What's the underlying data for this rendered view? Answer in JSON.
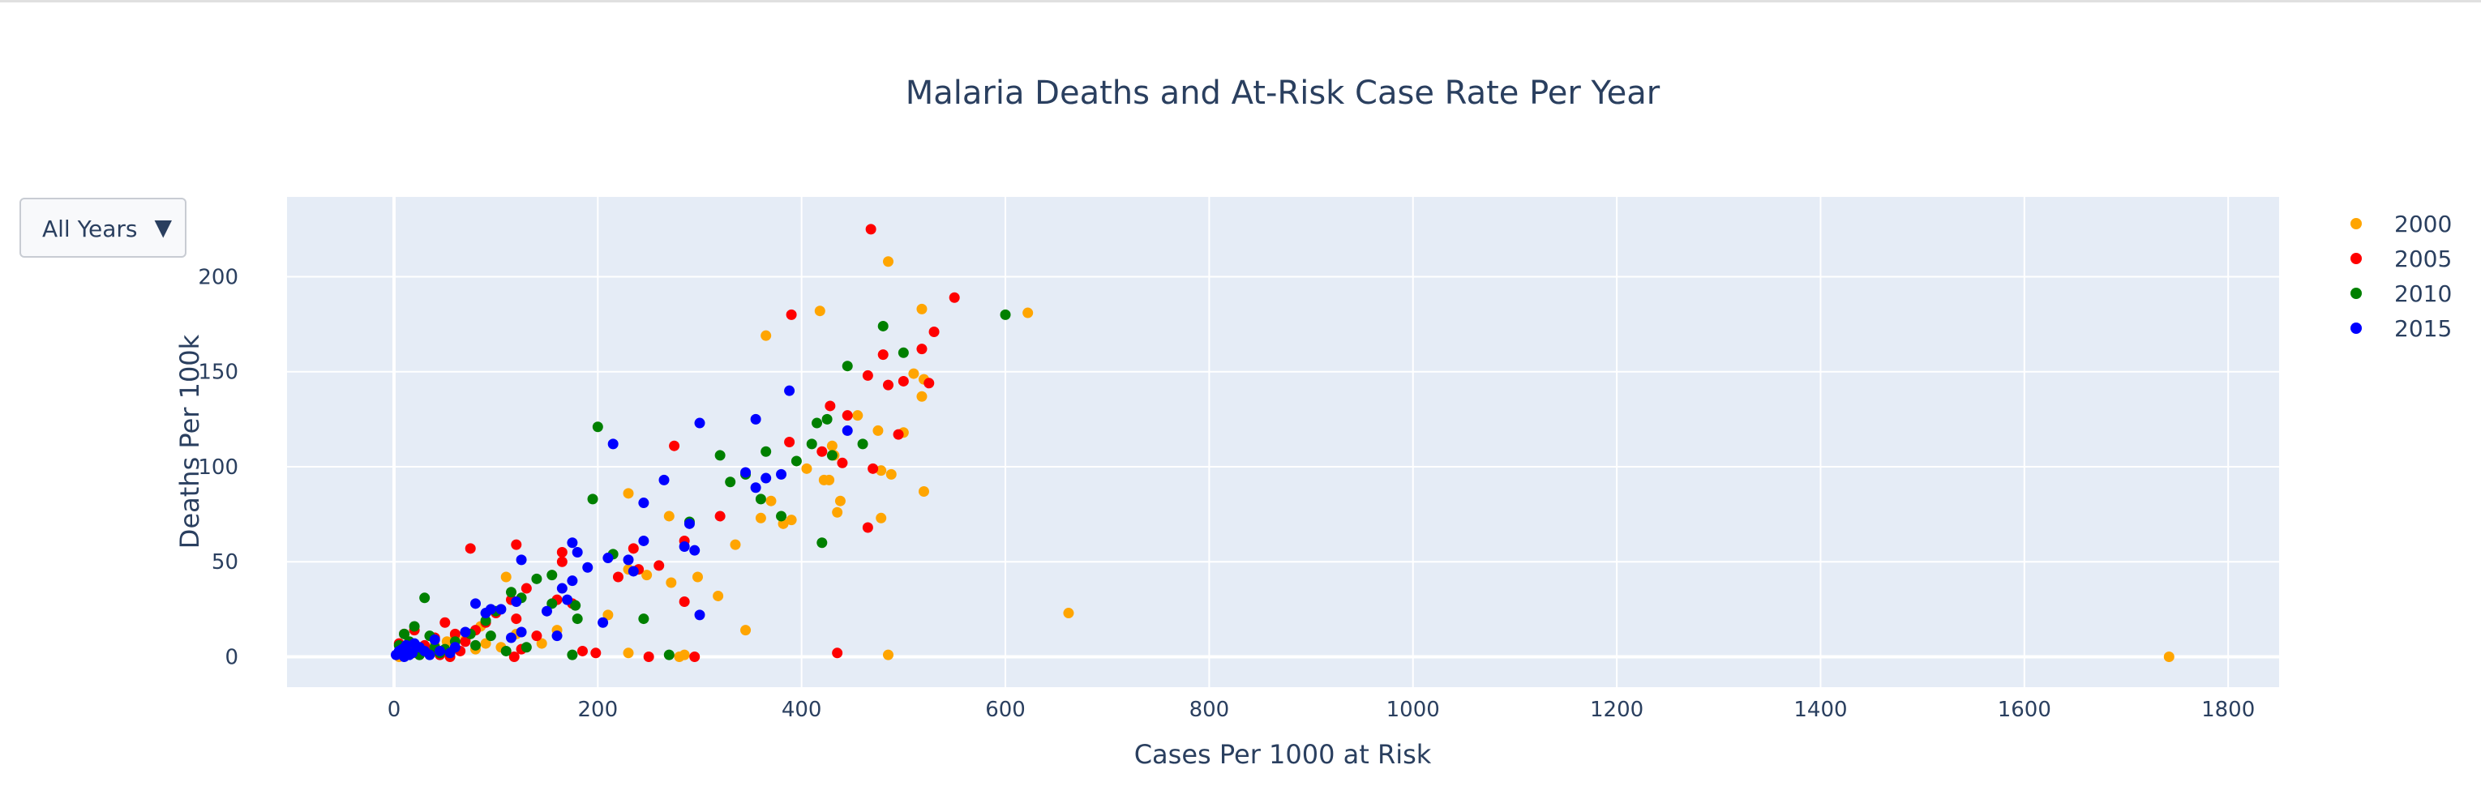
{
  "chart_data": {
    "type": "scatter",
    "title": "Malaria Deaths and At-Risk Case Rate Per Year",
    "xlabel": "Cases Per 1000 at Risk",
    "ylabel": "Deaths Per 100k",
    "xlim": [
      -105,
      1850
    ],
    "ylim": [
      -16,
      242
    ],
    "xticks": [
      0,
      200,
      400,
      600,
      800,
      1000,
      1200,
      1400,
      1600,
      1800
    ],
    "yticks": [
      0,
      50,
      100,
      150,
      200
    ],
    "grid": true,
    "legend_position": "top-right",
    "series": [
      {
        "name": "2000",
        "color": "#ffa500",
        "points": [
          [
            485,
            208
          ],
          [
            365,
            169
          ],
          [
            418,
            182
          ],
          [
            518,
            183
          ],
          [
            622,
            181
          ],
          [
            520,
            146
          ],
          [
            510,
            149
          ],
          [
            500,
            118
          ],
          [
            518,
            137
          ],
          [
            455,
            127
          ],
          [
            475,
            119
          ],
          [
            405,
            99
          ],
          [
            435,
            76
          ],
          [
            438,
            82
          ],
          [
            520,
            87
          ],
          [
            488,
            96
          ],
          [
            478,
            98
          ],
          [
            478,
            73
          ],
          [
            370,
            82
          ],
          [
            382,
            70
          ],
          [
            390,
            72
          ],
          [
            430,
            111
          ],
          [
            422,
            93
          ],
          [
            427,
            93
          ],
          [
            432,
            106
          ],
          [
            360,
            73
          ],
          [
            335,
            59
          ],
          [
            318,
            32
          ],
          [
            298,
            42
          ],
          [
            272,
            39
          ],
          [
            270,
            74
          ],
          [
            230,
            86
          ],
          [
            248,
            43
          ],
          [
            230,
            46
          ],
          [
            210,
            22
          ],
          [
            345,
            14
          ],
          [
            662,
            23
          ],
          [
            230,
            2
          ],
          [
            285,
            1
          ],
          [
            280,
            0
          ],
          [
            485,
            1
          ],
          [
            1742,
            0
          ],
          [
            110,
            42
          ],
          [
            105,
            5
          ],
          [
            85,
            16
          ],
          [
            80,
            4
          ],
          [
            120,
            12
          ],
          [
            145,
            7
          ],
          [
            160,
            14
          ],
          [
            60,
            11
          ],
          [
            52,
            8
          ],
          [
            40,
            6
          ],
          [
            30,
            4
          ],
          [
            20,
            2
          ],
          [
            10,
            1
          ],
          [
            5,
            0
          ],
          [
            3,
            1
          ],
          [
            12,
            2
          ],
          [
            8,
            3
          ],
          [
            15,
            5
          ],
          [
            25,
            1
          ],
          [
            35,
            3
          ],
          [
            45,
            2
          ],
          [
            70,
            9
          ],
          [
            90,
            7
          ]
        ]
      },
      {
        "name": "2005",
        "color": "#ff0000",
        "points": [
          [
            468,
            225
          ],
          [
            390,
            180
          ],
          [
            550,
            189
          ],
          [
            530,
            171
          ],
          [
            518,
            162
          ],
          [
            480,
            159
          ],
          [
            465,
            148
          ],
          [
            485,
            143
          ],
          [
            500,
            145
          ],
          [
            525,
            144
          ],
          [
            445,
            127
          ],
          [
            440,
            102
          ],
          [
            470,
            99
          ],
          [
            465,
            68
          ],
          [
            428,
            132
          ],
          [
            420,
            108
          ],
          [
            495,
            117
          ],
          [
            388,
            113
          ],
          [
            275,
            111
          ],
          [
            320,
            74
          ],
          [
            285,
            61
          ],
          [
            260,
            48
          ],
          [
            235,
            57
          ],
          [
            220,
            42
          ],
          [
            240,
            46
          ],
          [
            165,
            55
          ],
          [
            165,
            50
          ],
          [
            120,
            59
          ],
          [
            75,
            57
          ],
          [
            130,
            36
          ],
          [
            115,
            30
          ],
          [
            100,
            23
          ],
          [
            120,
            20
          ],
          [
            90,
            18
          ],
          [
            60,
            12
          ],
          [
            70,
            8
          ],
          [
            50,
            18
          ],
          [
            40,
            10
          ],
          [
            30,
            6
          ],
          [
            20,
            14
          ],
          [
            10,
            12
          ],
          [
            5,
            7
          ],
          [
            15,
            4
          ],
          [
            25,
            3
          ],
          [
            35,
            2
          ],
          [
            45,
            1
          ],
          [
            55,
            0
          ],
          [
            118,
            0
          ],
          [
            125,
            4
          ],
          [
            185,
            3
          ],
          [
            198,
            2
          ],
          [
            250,
            0
          ],
          [
            295,
            0
          ],
          [
            435,
            2
          ],
          [
            285,
            29
          ],
          [
            175,
            28
          ],
          [
            160,
            30
          ],
          [
            140,
            11
          ],
          [
            80,
            14
          ],
          [
            65,
            3
          ]
        ]
      },
      {
        "name": "2010",
        "color": "#008000",
        "points": [
          [
            600,
            180
          ],
          [
            480,
            174
          ],
          [
            500,
            160
          ],
          [
            445,
            153
          ],
          [
            425,
            125
          ],
          [
            415,
            123
          ],
          [
            410,
            112
          ],
          [
            430,
            106
          ],
          [
            460,
            112
          ],
          [
            395,
            103
          ],
          [
            365,
            108
          ],
          [
            320,
            106
          ],
          [
            330,
            92
          ],
          [
            345,
            96
          ],
          [
            360,
            83
          ],
          [
            380,
            74
          ],
          [
            420,
            60
          ],
          [
            200,
            121
          ],
          [
            195,
            83
          ],
          [
            290,
            71
          ],
          [
            215,
            54
          ],
          [
            140,
            41
          ],
          [
            155,
            43
          ],
          [
            178,
            27
          ],
          [
            125,
            31
          ],
          [
            100,
            24
          ],
          [
            90,
            19
          ],
          [
            75,
            12
          ],
          [
            60,
            8
          ],
          [
            30,
            31
          ],
          [
            20,
            16
          ],
          [
            10,
            12
          ],
          [
            5,
            6
          ],
          [
            15,
            8
          ],
          [
            35,
            11
          ],
          [
            40,
            5
          ],
          [
            50,
            4
          ],
          [
            110,
            3
          ],
          [
            130,
            5
          ],
          [
            175,
            1
          ],
          [
            270,
            1
          ],
          [
            245,
            20
          ],
          [
            180,
            20
          ],
          [
            155,
            28
          ],
          [
            115,
            34
          ],
          [
            95,
            11
          ],
          [
            80,
            6
          ],
          [
            45,
            2
          ],
          [
            25,
            1
          ]
        ]
      },
      {
        "name": "2015",
        "color": "#0000ff",
        "points": [
          [
            388,
            140
          ],
          [
            355,
            125
          ],
          [
            300,
            123
          ],
          [
            215,
            112
          ],
          [
            265,
            93
          ],
          [
            245,
            81
          ],
          [
            230,
            51
          ],
          [
            210,
            52
          ],
          [
            245,
            61
          ],
          [
            175,
            60
          ],
          [
            180,
            55
          ],
          [
            175,
            40
          ],
          [
            190,
            47
          ],
          [
            165,
            36
          ],
          [
            150,
            24
          ],
          [
            125,
            51
          ],
          [
            120,
            29
          ],
          [
            105,
            25
          ],
          [
            95,
            25
          ],
          [
            90,
            23
          ],
          [
            80,
            28
          ],
          [
            70,
            13
          ],
          [
            60,
            5
          ],
          [
            55,
            2
          ],
          [
            40,
            9
          ],
          [
            30,
            3
          ],
          [
            20,
            7
          ],
          [
            15,
            1
          ],
          [
            10,
            0
          ],
          [
            5,
            3
          ],
          [
            2,
            1
          ],
          [
            8,
            4
          ],
          [
            12,
            6
          ],
          [
            18,
            2
          ],
          [
            25,
            5
          ],
          [
            35,
            1
          ],
          [
            45,
            3
          ],
          [
            115,
            10
          ],
          [
            125,
            13
          ],
          [
            160,
            11
          ],
          [
            205,
            18
          ],
          [
            300,
            22
          ],
          [
            295,
            56
          ],
          [
            285,
            58
          ],
          [
            290,
            70
          ],
          [
            235,
            45
          ],
          [
            345,
            97
          ],
          [
            355,
            89
          ],
          [
            380,
            96
          ],
          [
            365,
            94
          ],
          [
            445,
            119
          ],
          [
            170,
            30
          ]
        ]
      }
    ]
  },
  "controls": {
    "year_dropdown": {
      "selected": "All Years",
      "caret": "▼"
    }
  }
}
